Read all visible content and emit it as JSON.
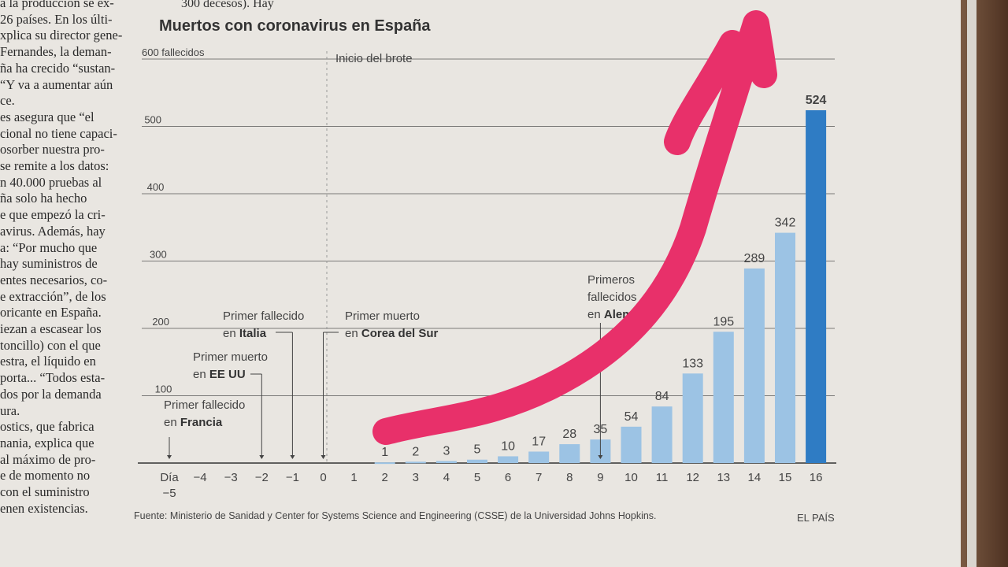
{
  "article_column": [
    "a la producción se ex-",
    "26 países. En los últi-",
    "xplica su director gene-",
    "Fernandes, la deman-",
    "ña ha crecido “sustan-",
    "“Y va a aumentar aún",
    "ce.",
    "es asegura que “el",
    "cional no tiene capaci-",
    "osorber nuestra pro-",
    "se remite a los datos:",
    "n 40.000 pruebas al",
    "ña solo ha hecho",
    "e que empezó la cri-",
    "avirus. Además, hay",
    "a: “Por mucho que",
    "hay suministros de",
    "entes necesarios, co-",
    "e extracción”, de los",
    "oricante en España.",
    "iezan a escasear los",
    "toncillo) con el que",
    "estra, el líquido en",
    "porta... “Todos esta-",
    "dos por la demanda",
    "ura.",
    "ostics, que fabrica",
    "nania, explica que",
    "al máximo de pro-",
    "e de momento no",
    "con el suministro",
    "enen existencias."
  ],
  "top_text": "300 decesos). Hay",
  "source": "Fuente: Ministerio de Sanidad y Center for Systems Science and Engineering (CSSE) de la Universidad Johns Hopkins.",
  "brand": "EL PAÍS",
  "colors": {
    "bar_light": "#9cc3e4",
    "bar_dark": "#2f7cc4",
    "marker": "#e8306a"
  },
  "chart_data": {
    "type": "bar",
    "title": "Muertos con coronavirus en España",
    "xlabel": "Día",
    "ylabel": "",
    "ylim": [
      0,
      600
    ],
    "yticks": [
      {
        "v": 100,
        "label": "100"
      },
      {
        "v": 200,
        "label": "200"
      },
      {
        "v": 300,
        "label": "300"
      },
      {
        "v": 400,
        "label": "400"
      },
      {
        "v": 500,
        "label": "500"
      },
      {
        "v": 600,
        "label": "600 fallecidos"
      }
    ],
    "categories": [
      "Día −5",
      "−4",
      "−3",
      "−2",
      "−1",
      "0",
      "1",
      "2",
      "3",
      "4",
      "5",
      "6",
      "7",
      "8",
      "9",
      "10",
      "11",
      "12",
      "13",
      "14",
      "15",
      "16"
    ],
    "x": [
      -5,
      -4,
      -3,
      -2,
      -1,
      0,
      1,
      2,
      3,
      4,
      5,
      6,
      7,
      8,
      9,
      10,
      11,
      12,
      13,
      14,
      15,
      16
    ],
    "values": [
      0,
      0,
      0,
      0,
      0,
      0,
      0,
      1,
      2,
      3,
      5,
      10,
      17,
      28,
      35,
      54,
      84,
      133,
      195,
      289,
      342,
      524
    ],
    "data_labels": [
      "",
      "",
      "",
      "",
      "",
      "",
      "",
      "1",
      "2",
      "3",
      "5",
      "10",
      "17",
      "28",
      "35",
      "54",
      "84",
      "133",
      "195",
      "289",
      "342",
      "524"
    ],
    "grid": true,
    "annotations": [
      {
        "day": 1,
        "text": [
          "Inicio del brote"
        ]
      },
      {
        "day": -5,
        "text": [
          "Primer fallecido",
          "en ",
          "Francia"
        ]
      },
      {
        "day": -2,
        "text": [
          "Primer muerto",
          "en ",
          "EE UU"
        ]
      },
      {
        "day": -1,
        "text": [
          "Primer fallecido",
          "en ",
          "Italia"
        ]
      },
      {
        "day": 0,
        "text": [
          "Primer muerto",
          "en ",
          "Corea del Sur"
        ]
      },
      {
        "day": 9,
        "text": [
          "Primeros",
          "fallecidos",
          "en ",
          "Alemania"
        ]
      }
    ]
  }
}
